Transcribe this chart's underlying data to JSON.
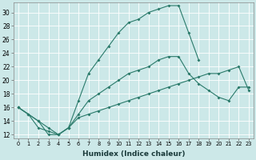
{
  "bg_color": "#cce8e8",
  "grid_color": "#b0d8d8",
  "line_color": "#2a7a6a",
  "xlabel": "Humidex (Indice chaleur)",
  "xlim_min": -0.5,
  "xlim_max": 23.5,
  "ylim_min": 11.5,
  "ylim_max": 31.5,
  "xticks": [
    0,
    1,
    2,
    3,
    4,
    5,
    6,
    7,
    8,
    9,
    10,
    11,
    12,
    13,
    14,
    15,
    16,
    17,
    18,
    19,
    20,
    21,
    22,
    23
  ],
  "yticks": [
    12,
    14,
    16,
    18,
    20,
    22,
    24,
    26,
    28,
    30
  ],
  "curve_top_x": [
    0,
    1,
    2,
    3,
    4,
    5,
    6,
    7,
    8,
    9,
    10,
    11,
    12,
    13,
    14,
    15,
    16,
    17,
    18
  ],
  "curve_top_y": [
    16,
    15,
    14,
    12,
    12,
    13,
    17,
    21,
    23,
    25,
    27,
    28.5,
    29,
    30,
    30.5,
    31,
    31,
    27,
    23
  ],
  "curve_mid_x": [
    0,
    2,
    3,
    4,
    5,
    6,
    7,
    8,
    9,
    10,
    11,
    12,
    13,
    14,
    15,
    16,
    17,
    18,
    19,
    20,
    21,
    22,
    23
  ],
  "curve_mid_y": [
    16,
    14,
    13,
    12,
    13,
    15,
    17,
    18,
    19,
    20,
    21,
    21.5,
    22,
    23,
    23.5,
    23.5,
    21,
    19.5,
    18.5,
    17.5,
    17,
    19,
    19
  ],
  "curve_bot_x": [
    0,
    1,
    2,
    3,
    4,
    5,
    6,
    7,
    8,
    9,
    10,
    11,
    12,
    13,
    14,
    15,
    16,
    17,
    18,
    19,
    20,
    21,
    22,
    23
  ],
  "curve_bot_y": [
    16,
    15,
    13,
    12.5,
    12,
    13,
    14.5,
    15,
    15.5,
    16,
    16.5,
    17,
    17.5,
    18,
    18.5,
    19,
    19.5,
    20,
    20.5,
    21,
    21,
    21.5,
    22,
    18.5
  ]
}
